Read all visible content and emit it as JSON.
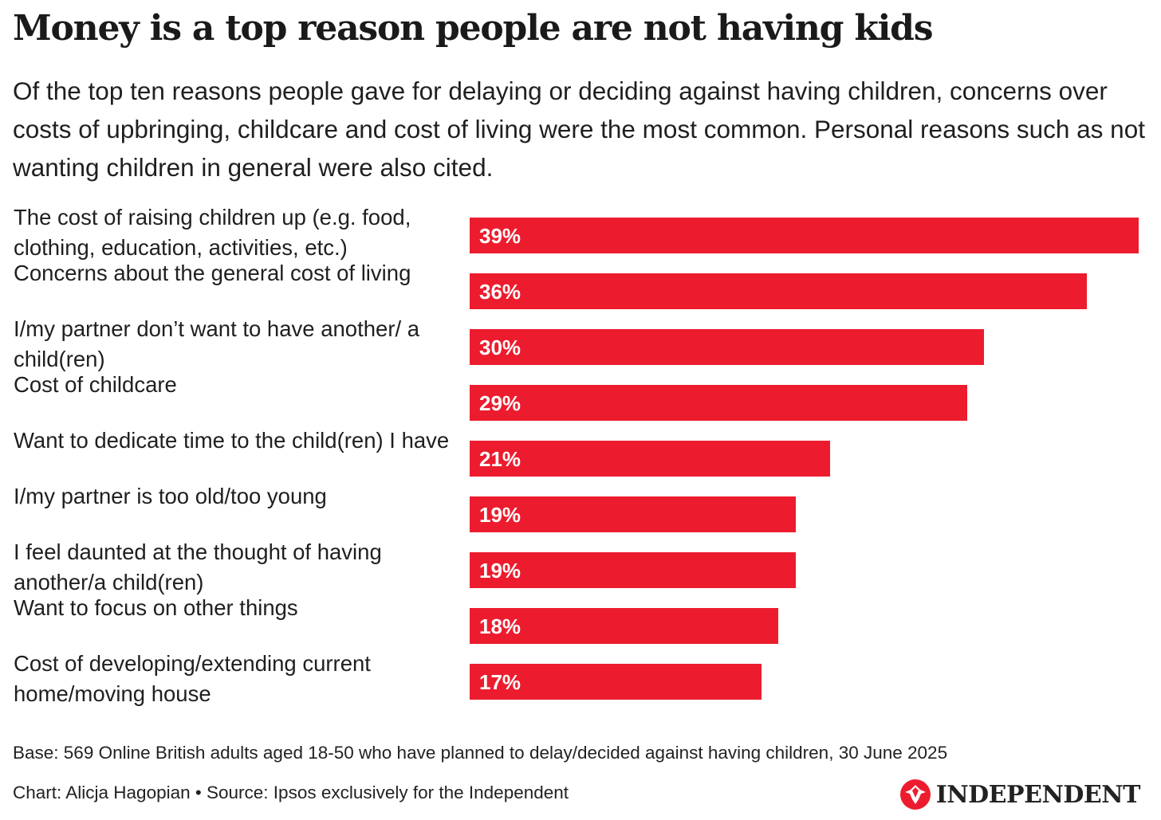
{
  "title": "Money is a top reason people are not having kids",
  "subtitle": "Of the top ten reasons people gave for delaying or deciding against having children, concerns over costs of upbringing, childcare and cost of living were the most common. Personal reasons such as not wanting children in general were also cited.",
  "chart_data": {
    "type": "bar",
    "orientation": "horizontal",
    "categories": [
      "The cost of raising children up (e.g. food, clothing, education, activities, etc.)",
      "Concerns about the general cost of living",
      "I/my partner don’t want to have another/ a child(ren)",
      "Cost of childcare",
      "Want to dedicate time to the child(ren) I have",
      "I/my partner is too old/too young",
      "I feel daunted at the thought of having another/a child(ren)",
      "Want to focus on other things",
      "Cost of developing/extending current home/moving house"
    ],
    "values": [
      39,
      36,
      30,
      29,
      21,
      19,
      19,
      18,
      17
    ],
    "value_labels": [
      "39%",
      "36%",
      "30%",
      "29%",
      "21%",
      "19%",
      "19%",
      "18%",
      "17%"
    ],
    "unit": "%",
    "xlim": [
      0,
      39
    ],
    "bar_color": "#ec1c2e",
    "label_color": "#ffffff",
    "grid": false
  },
  "footer": {
    "base": "Base: 569 Online British adults aged 18-50 who have planned to delay/decided against having children, 30 June 2025",
    "credit": "Chart: Alicja Hagopian • Source: Ipsos exclusively for the Independent",
    "logo_text": "INDEPENDENT",
    "logo_icon": "eagle-icon",
    "logo_color": "#ec1c2e"
  }
}
